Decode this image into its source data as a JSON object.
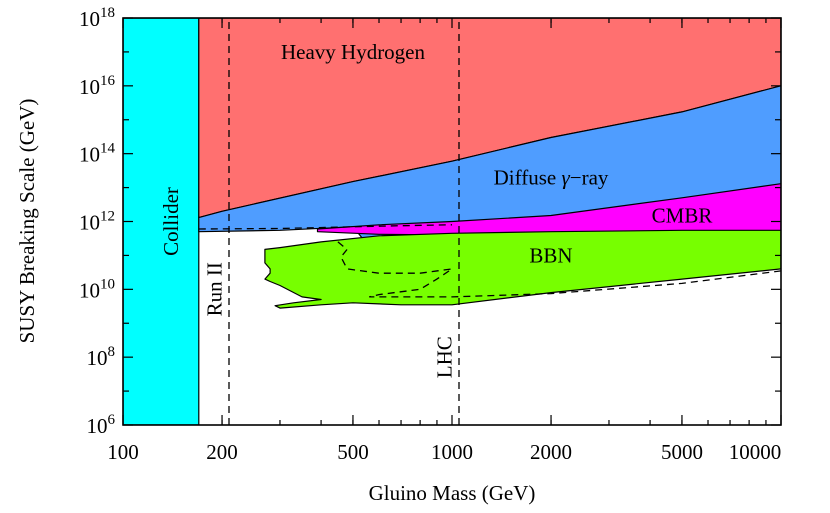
{
  "chart_data": {
    "type": "area",
    "xlabel": "Gluino Mass (GeV)",
    "ylabel": "SUSY Breaking Scale (GeV)",
    "xscale": "log",
    "yscale": "log",
    "xlim": [
      100,
      10000
    ],
    "ylim": [
      1000000,
      1000000000000000000
    ],
    "x_ticks": [
      {
        "value": 100,
        "label": "100"
      },
      {
        "value": 200,
        "label": "200"
      },
      {
        "value": 500,
        "label": "500"
      },
      {
        "value": 1000,
        "label": "1000"
      },
      {
        "value": 2000,
        "label": "2000"
      },
      {
        "value": 5000,
        "label": "5000"
      },
      {
        "value": 10000,
        "label": "10000"
      }
    ],
    "y_ticks": [
      {
        "value": 1000000,
        "base": "10",
        "exp": "6"
      },
      {
        "value": 100000000,
        "base": "10",
        "exp": "8"
      },
      {
        "value": 10000000000,
        "base": "10",
        "exp": "10"
      },
      {
        "value": 1000000000000,
        "base": "10",
        "exp": "12"
      },
      {
        "value": 100000000000000,
        "base": "10",
        "exp": "14"
      },
      {
        "value": 10000000000000000,
        "base": "10",
        "exp": "16"
      },
      {
        "value": 1000000000000000000,
        "base": "10",
        "exp": "18"
      }
    ],
    "grid": false,
    "colors": {
      "collider": "#00ffff",
      "heavy_hydrogen": "#ff7070",
      "diffuse_gamma": "#4f9dff",
      "cmbr": "#ff00ff",
      "bbn": "#77ff00"
    },
    "regions": [
      {
        "name": "Collider",
        "color": "#00ffff",
        "points": [
          [
            100,
            1000000
          ],
          [
            170,
            1000000
          ],
          [
            170,
            1000000000000000000
          ],
          [
            100,
            1000000000000000000
          ]
        ]
      },
      {
        "name": "Heavy Hydrogen",
        "color": "#ff7070",
        "points": [
          [
            170,
            1000000000000000000
          ],
          [
            10000,
            1000000000000000000
          ],
          [
            10000,
            10000000000000000
          ],
          [
            5000,
            1700000000000000
          ],
          [
            2000,
            300000000000000
          ],
          [
            1000,
            60000000000000
          ],
          [
            500,
            15000000000000
          ],
          [
            200,
            2000000000000
          ],
          [
            170,
            1300000000000
          ]
        ]
      },
      {
        "name": "Diffuse γ−ray",
        "color": "#4f9dff",
        "points": [
          [
            170,
            1300000000000
          ],
          [
            200,
            2000000000000
          ],
          [
            500,
            15000000000000
          ],
          [
            1000,
            60000000000000
          ],
          [
            2000,
            300000000000000
          ],
          [
            5000,
            1700000000000000
          ],
          [
            10000,
            10000000000000000
          ],
          [
            10000,
            1300000000000
          ],
          [
            7000,
            800000000000
          ],
          [
            5000,
            600000000000
          ],
          [
            3000,
            350000000000
          ],
          [
            2000,
            220000000000
          ],
          [
            1200,
            150000000000
          ],
          [
            800,
            100000000000
          ],
          [
            600,
            80000000000
          ],
          [
            500,
            700000000000
          ],
          [
            300,
            550000000000
          ],
          [
            170,
            500000000000
          ]
        ]
      },
      {
        "name": "CMBR",
        "color": "#ff00ff",
        "points": [
          [
            390,
            600000000000
          ],
          [
            600,
            800000000000
          ],
          [
            1000,
            1000000000000
          ],
          [
            2000,
            1500000000000
          ],
          [
            5000,
            5000000000000
          ],
          [
            10000,
            13000000000000
          ],
          [
            10000,
            500000000000
          ],
          [
            7000,
            500000000000
          ],
          [
            5000,
            480000000000
          ],
          [
            3000,
            450000000000
          ],
          [
            2000,
            430000000000
          ],
          [
            1000,
            400000000000
          ],
          [
            600,
            420000000000
          ],
          [
            390,
            500000000000
          ]
        ]
      },
      {
        "name": "BBN",
        "color": "#77ff00",
        "points": [
          [
            270,
            150000000000
          ],
          [
            300,
            170000000000
          ],
          [
            400,
            250000000000
          ],
          [
            600,
            380000000000
          ],
          [
            1000,
            450000000000
          ],
          [
            2000,
            500000000000
          ],
          [
            5000,
            550000000000
          ],
          [
            10000,
            550000000000
          ],
          [
            10000,
            40000000000
          ],
          [
            5000,
            20000000000
          ],
          [
            2000,
            8000000000
          ],
          [
            1000,
            3500000000
          ],
          [
            700,
            3500000000
          ],
          [
            500,
            4000000000
          ],
          [
            400,
            3500000000
          ],
          [
            300,
            2800000000
          ],
          [
            290,
            3300000000
          ],
          [
            330,
            4000000000
          ],
          [
            400,
            5000000000
          ],
          [
            350,
            6000000000
          ],
          [
            300,
            13000000000
          ],
          [
            280,
            17000000000
          ],
          [
            270,
            20000000000
          ],
          [
            280,
            30000000000
          ],
          [
            280,
            40000000000
          ],
          [
            270,
            60000000000
          ]
        ]
      }
    ],
    "boundaries": [
      {
        "name": "Run II",
        "style": "dashed",
        "points": [
          [
            210,
            1000000
          ],
          [
            210,
            1000000000000000000
          ]
        ]
      },
      {
        "name": "LHC",
        "style": "dashed",
        "points": [
          [
            1050,
            1000000
          ],
          [
            1050,
            1000000000000000000
          ]
        ]
      },
      {
        "name": "upper-dashed",
        "style": "dashed",
        "points": [
          [
            170,
            600000000000
          ],
          [
            300,
            620000000000
          ],
          [
            500,
            700000000000
          ],
          [
            700,
            750000000000
          ],
          [
            1000,
            800000000000
          ]
        ]
      },
      {
        "name": "bbn-dashed",
        "style": "dashed",
        "points": [
          [
            450,
            250000000000
          ],
          [
            480,
            150000000000
          ],
          [
            460,
            90000000000
          ],
          [
            480,
            40000000000
          ],
          [
            600,
            30000000000
          ],
          [
            800,
            30000000000
          ],
          [
            1000,
            40000000000
          ],
          [
            900,
            20000000000
          ],
          [
            800,
            10000000000
          ],
          [
            600,
            7000000000
          ],
          [
            560,
            6000000000
          ],
          [
            1000,
            6000000000
          ],
          [
            2000,
            7500000000
          ],
          [
            5000,
            15000000000
          ],
          [
            10000,
            35000000000
          ]
        ]
      }
    ],
    "labels": [
      {
        "text": "Collider",
        "anchor": [
          140,
          1000000000000
        ],
        "rotate": -90
      },
      {
        "text": "Heavy Hydrogen",
        "anchor": [
          500,
          100000000000000000
        ]
      },
      {
        "text": "Diffuse",
        "greek": "γ",
        "rest": "−ray",
        "anchor": [
          2000,
          20000000000000
        ]
      },
      {
        "text": "CMBR",
        "anchor": [
          5000,
          1500000000000
        ]
      },
      {
        "text": "BBN",
        "anchor": [
          2000,
          100000000000
        ]
      },
      {
        "text": "Run II",
        "anchor": [
          190,
          10000000000
        ],
        "rotate": -90
      },
      {
        "text": "LHC",
        "anchor": [
          950,
          100000000
        ],
        "rotate": -90
      }
    ]
  }
}
